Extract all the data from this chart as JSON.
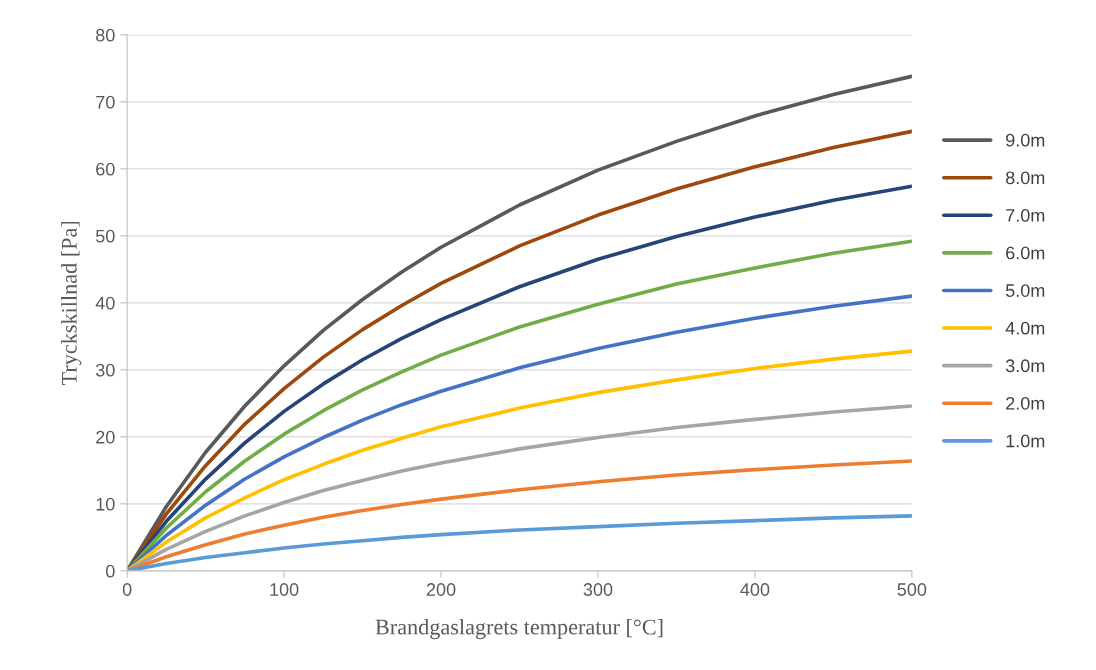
{
  "chart_data": {
    "type": "line",
    "xlabel": "Brandgaslagrets temperatur [°C]",
    "ylabel": "Tryckskillnad [Pa]",
    "x": [
      0,
      25,
      50,
      75,
      100,
      125,
      150,
      175,
      200,
      250,
      300,
      350,
      400,
      450,
      500
    ],
    "xlim": [
      0,
      500
    ],
    "xticks": [
      0,
      100,
      200,
      300,
      400,
      500
    ],
    "ylim": [
      0,
      80
    ],
    "yticks": [
      0,
      10,
      20,
      30,
      40,
      50,
      60,
      70,
      80
    ],
    "grid": "y",
    "legend": "right",
    "marker": "none",
    "line_style": "solid",
    "series": [
      {
        "name": "9.0m",
        "color": "#595959",
        "values": [
          0,
          9.6,
          17.7,
          24.6,
          30.6,
          35.9,
          40.5,
          44.6,
          48.3,
          54.6,
          59.8,
          64.1,
          67.9,
          71.1,
          73.8
        ]
      },
      {
        "name": "8.0m",
        "color": "#9e480e",
        "values": [
          0,
          8.5,
          15.7,
          21.9,
          27.2,
          31.9,
          36.0,
          39.6,
          42.9,
          48.5,
          53.1,
          57.0,
          60.3,
          63.2,
          65.6
        ]
      },
      {
        "name": "7.0m",
        "color": "#264478",
        "values": [
          0,
          7.4,
          13.7,
          19.1,
          23.8,
          27.9,
          31.5,
          34.7,
          37.5,
          42.4,
          46.5,
          49.9,
          52.8,
          55.3,
          57.4
        ]
      },
      {
        "name": "6.0m",
        "color": "#70ad47",
        "values": [
          0,
          6.4,
          11.8,
          16.4,
          20.4,
          23.9,
          27.0,
          29.7,
          32.2,
          36.4,
          39.8,
          42.8,
          45.2,
          47.4,
          49.2
        ]
      },
      {
        "name": "5.0m",
        "color": "#4472c4",
        "values": [
          0,
          5.3,
          9.8,
          13.7,
          17.0,
          19.9,
          22.5,
          24.8,
          26.8,
          30.3,
          33.2,
          35.6,
          37.7,
          39.5,
          41.0
        ]
      },
      {
        "name": "4.0m",
        "color": "#ffc000",
        "values": [
          0,
          4.3,
          7.9,
          10.9,
          13.6,
          15.9,
          18.0,
          19.8,
          21.5,
          24.3,
          26.6,
          28.5,
          30.2,
          31.6,
          32.8
        ]
      },
      {
        "name": "3.0m",
        "color": "#a5a5a5",
        "values": [
          0,
          3.2,
          5.9,
          8.2,
          10.2,
          12.0,
          13.5,
          14.9,
          16.1,
          18.2,
          19.9,
          21.4,
          22.6,
          23.7,
          24.6
        ]
      },
      {
        "name": "2.0m",
        "color": "#ed7d31",
        "values": [
          0,
          2.1,
          3.9,
          5.5,
          6.8,
          8.0,
          9.0,
          9.9,
          10.7,
          12.1,
          13.3,
          14.3,
          15.1,
          15.8,
          16.4
        ]
      },
      {
        "name": "1.0m",
        "color": "#5b9bd5",
        "values": [
          0,
          1.1,
          2.0,
          2.7,
          3.4,
          4.0,
          4.5,
          5.0,
          5.4,
          6.1,
          6.6,
          7.1,
          7.5,
          7.9,
          8.2
        ]
      }
    ]
  }
}
